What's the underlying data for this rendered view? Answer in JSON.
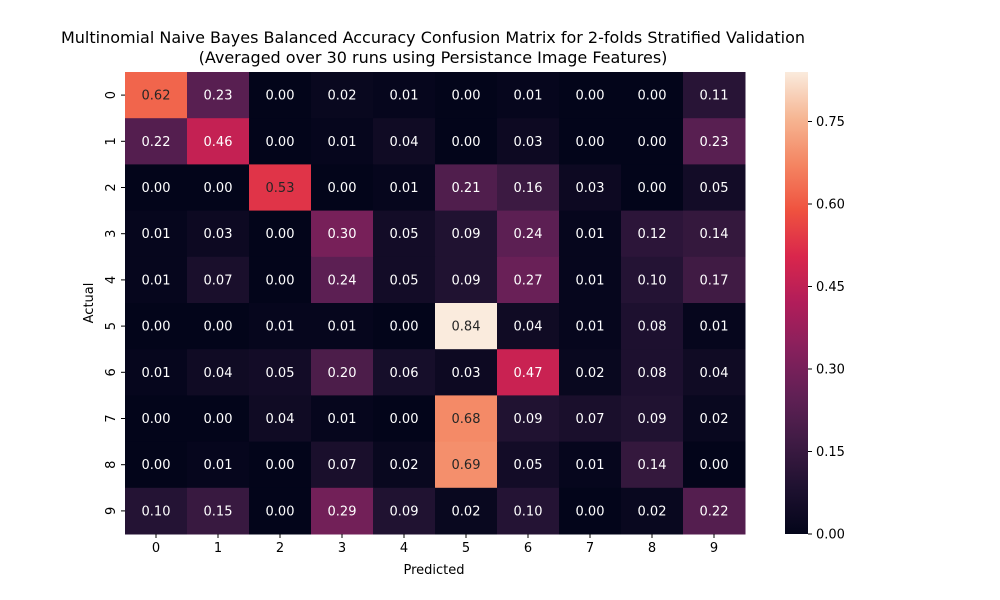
{
  "chart_data": {
    "type": "heatmap",
    "title": "Multinomial Naive Bayes Balanced Accuracy Confusion Matrix for 2-folds Stratified Validation",
    "subtitle": "(Averaged over 30 runs using Persistance Image Features)",
    "xlabel": "Predicted",
    "ylabel": "Actual",
    "x_categories": [
      "0",
      "1",
      "2",
      "3",
      "4",
      "5",
      "6",
      "7",
      "8",
      "9"
    ],
    "y_categories": [
      "0",
      "1",
      "2",
      "3",
      "4",
      "5",
      "6",
      "7",
      "8",
      "9"
    ],
    "values": [
      [
        0.62,
        0.23,
        0.0,
        0.02,
        0.01,
        0.0,
        0.01,
        0.0,
        0.0,
        0.11
      ],
      [
        0.22,
        0.46,
        0.0,
        0.01,
        0.04,
        0.0,
        0.03,
        0.0,
        0.0,
        0.23
      ],
      [
        0.0,
        0.0,
        0.53,
        0.0,
        0.01,
        0.21,
        0.16,
        0.03,
        0.0,
        0.05
      ],
      [
        0.01,
        0.03,
        0.0,
        0.3,
        0.05,
        0.09,
        0.24,
        0.01,
        0.12,
        0.14
      ],
      [
        0.01,
        0.07,
        0.0,
        0.24,
        0.05,
        0.09,
        0.27,
        0.01,
        0.1,
        0.17
      ],
      [
        0.0,
        0.0,
        0.01,
        0.01,
        0.0,
        0.84,
        0.04,
        0.01,
        0.08,
        0.01
      ],
      [
        0.01,
        0.04,
        0.05,
        0.2,
        0.06,
        0.03,
        0.47,
        0.02,
        0.08,
        0.04
      ],
      [
        0.0,
        0.0,
        0.04,
        0.01,
        0.0,
        0.68,
        0.09,
        0.07,
        0.09,
        0.02
      ],
      [
        0.0,
        0.01,
        0.0,
        0.07,
        0.02,
        0.69,
        0.05,
        0.01,
        0.14,
        0.0
      ],
      [
        0.1,
        0.15,
        0.0,
        0.29,
        0.09,
        0.02,
        0.1,
        0.0,
        0.02,
        0.22
      ]
    ],
    "colorbar": {
      "colormap": "rocket",
      "range": [
        0,
        0.84
      ],
      "ticks": [
        0.0,
        0.15,
        0.3,
        0.45,
        0.6,
        0.75
      ],
      "tick_labels": [
        "0.00",
        "0.15",
        "0.30",
        "0.45",
        "0.60",
        "0.75"
      ]
    },
    "annotation_format": "0.00",
    "grid": false
  }
}
